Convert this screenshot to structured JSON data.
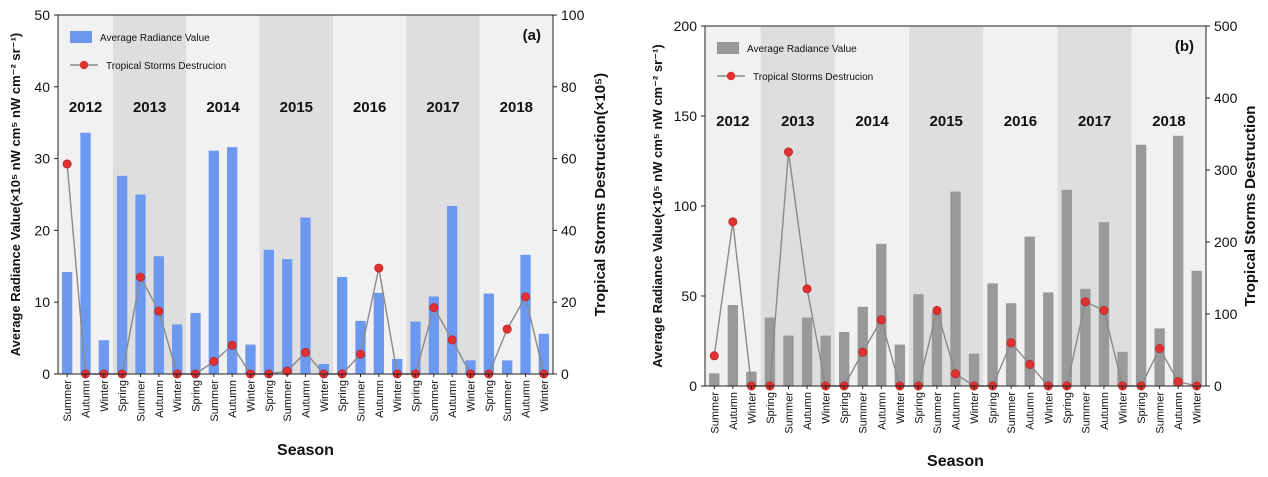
{
  "chart_data": [
    {
      "panel_label": "(a)",
      "type": "bar+line",
      "xlabel": "Season",
      "ylabel": "Average  Radiance Value(×10⁵ nW cm⁵ nW cm⁻² sr⁻¹)",
      "y2label": "Tropical Storms Destruction(×10⁵)",
      "ylim": [
        0,
        50
      ],
      "y2lim": [
        0,
        100
      ],
      "yticks": [
        "0",
        "10",
        "20",
        "30",
        "40",
        "50"
      ],
      "y2ticks": [
        "0",
        "20",
        "40",
        "60",
        "80",
        "100"
      ],
      "legend": {
        "position": "top-left",
        "bar_label": "Average Radiance Value",
        "line_label": "Tropical Storms Destrucion"
      },
      "colors": {
        "bar": "#6d98f0",
        "line": "#8a8a8a",
        "marker": "#e03030",
        "shade_dark": "#dedede",
        "shade_light": "#f1f1f1"
      },
      "categories": [
        "Summer",
        "Autumn",
        "Winter",
        "Spring",
        "Summer",
        "Autumn",
        "Winter",
        "Spring",
        "Summer",
        "Autumn",
        "Winter",
        "Spring",
        "Summer",
        "Autumn",
        "Winter",
        "Spring",
        "Summer",
        "Autumn",
        "Winter",
        "Spring",
        "Summer",
        "Autumn",
        "Winter",
        "Spring",
        "Summer",
        "Autumn",
        "Winter"
      ],
      "years": [
        {
          "label": "2012",
          "start": 0,
          "end": 2
        },
        {
          "label": "2013",
          "start": 3,
          "end": 6
        },
        {
          "label": "2014",
          "start": 7,
          "end": 10
        },
        {
          "label": "2015",
          "start": 11,
          "end": 14
        },
        {
          "label": "2016",
          "start": 15,
          "end": 18
        },
        {
          "label": "2017",
          "start": 19,
          "end": 22
        },
        {
          "label": "2018",
          "start": 23,
          "end": 26
        }
      ],
      "series": [
        {
          "name": "Average Radiance Value",
          "axis": "left",
          "kind": "bar",
          "values": [
            14.2,
            33.6,
            4.7,
            27.6,
            25.0,
            16.4,
            6.9,
            8.5,
            31.1,
            31.6,
            4.1,
            17.3,
            16.0,
            21.8,
            1.4,
            13.5,
            7.4,
            11.3,
            2.1,
            7.3,
            10.8,
            23.4,
            1.9,
            11.2,
            1.9,
            16.6,
            5.6
          ]
        },
        {
          "name": "Tropical Storms Destrucion",
          "axis": "right",
          "kind": "line",
          "values": [
            58.5,
            0,
            0,
            0,
            27.0,
            17.5,
            0,
            0,
            3.5,
            8.0,
            0,
            0,
            0.8,
            6.0,
            0,
            0,
            5.5,
            29.5,
            0,
            0,
            18.5,
            9.5,
            0,
            0,
            12.5,
            21.5,
            0
          ]
        }
      ]
    },
    {
      "panel_label": "(b)",
      "type": "bar+line",
      "xlabel": "Season",
      "ylabel": "Average  Radiance Value(×10⁵ nW cm⁵ nW cm⁻² sr⁻¹)",
      "y2label": "Tropical Storms Destruction",
      "ylim": [
        0,
        200
      ],
      "y2lim": [
        0,
        500
      ],
      "yticks": [
        "0",
        "50",
        "100",
        "150",
        "200"
      ],
      "y2ticks": [
        "0",
        "100",
        "200",
        "300",
        "400",
        "500"
      ],
      "legend": {
        "position": "top-left",
        "bar_label": "Average Radiance Value",
        "line_label": "Tropical Storms Destrucion"
      },
      "colors": {
        "bar": "#999999",
        "line": "#8a8a8a",
        "marker": "#e03030",
        "shade_dark": "#dedede",
        "shade_light": "#f1f1f1"
      },
      "categories": [
        "Summer",
        "Autumn",
        "Winter",
        "Spring",
        "Summer",
        "Autumn",
        "Winter",
        "Spring",
        "Summer",
        "Autumn",
        "Winter",
        "Spring",
        "Summer",
        "Autumn",
        "Winter",
        "Spring",
        "Summer",
        "Autumn",
        "Winter",
        "Spring",
        "Summer",
        "Autumn",
        "Winter",
        "Spring",
        "Summer",
        "Autumn",
        "Winter"
      ],
      "years": [
        {
          "label": "2012",
          "start": 0,
          "end": 2
        },
        {
          "label": "2013",
          "start": 3,
          "end": 6
        },
        {
          "label": "2014",
          "start": 7,
          "end": 10
        },
        {
          "label": "2015",
          "start": 11,
          "end": 14
        },
        {
          "label": "2016",
          "start": 15,
          "end": 18
        },
        {
          "label": "2017",
          "start": 19,
          "end": 22
        },
        {
          "label": "2018",
          "start": 23,
          "end": 26
        }
      ],
      "series": [
        {
          "name": "Average Radiance Value",
          "axis": "left",
          "kind": "bar",
          "values": [
            7,
            45,
            8,
            38,
            28,
            38,
            28,
            30,
            44,
            79,
            23,
            51,
            41,
            108,
            18,
            57,
            46,
            83,
            52,
            109,
            54,
            91,
            19,
            134,
            32,
            139,
            64
          ]
        },
        {
          "name": "Tropical Storms Destrucion",
          "axis": "right",
          "kind": "line",
          "values": [
            42,
            228,
            0,
            0,
            325,
            135,
            0,
            0,
            47,
            92,
            0,
            0,
            105,
            17,
            0,
            0,
            60,
            30,
            0,
            0,
            117,
            105,
            0,
            0,
            52,
            6,
            0
          ]
        }
      ]
    }
  ]
}
